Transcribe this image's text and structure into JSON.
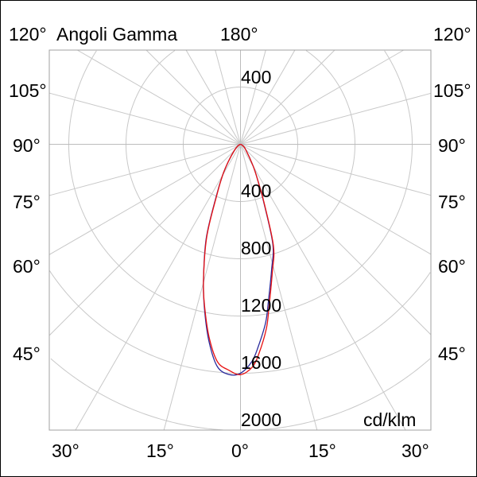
{
  "chart_data": {
    "type": "line",
    "subtype": "polar-photometric",
    "title": "Angoli Gamma",
    "unit_label": "cd/klm",
    "radial_ticks": [
      400,
      800,
      1200,
      1600,
      2000
    ],
    "radial_range": [
      0,
      2000
    ],
    "angle_step_deg": 15,
    "angle_labels": {
      "top_center": "180°",
      "left": [
        "120°",
        "105°",
        "90°",
        "75°",
        "60°",
        "45°"
      ],
      "right": [
        "120°",
        "105°",
        "90°",
        "75°",
        "60°",
        "45°"
      ],
      "bottom": [
        "30°",
        "15°",
        "0°",
        "15°",
        "30°"
      ]
    },
    "grid": true,
    "series": [
      {
        "color": "#2a2a9c",
        "gamma": [
          -90,
          -60,
          -45,
          -35,
          -30,
          -25,
          -20,
          -15,
          -12,
          -9,
          -6,
          -3,
          0,
          3,
          5,
          8,
          10,
          14,
          18,
          22,
          25,
          30,
          45,
          60,
          90
        ],
        "values": [
          0,
          20,
          60,
          150,
          250,
          400,
          700,
          1000,
          1200,
          1400,
          1560,
          1610,
          1600,
          1520,
          1420,
          1260,
          1120,
          900,
          730,
          430,
          300,
          180,
          50,
          15,
          0
        ]
      },
      {
        "color": "#e81010",
        "gamma": [
          -90,
          -60,
          -45,
          -35,
          -30,
          -25,
          -20,
          -15,
          -12,
          -9,
          -6,
          -3,
          0,
          3,
          5,
          8,
          10,
          14,
          18,
          22,
          25,
          30,
          45,
          60,
          90
        ],
        "values": [
          0,
          20,
          60,
          150,
          250,
          390,
          690,
          1000,
          1190,
          1380,
          1530,
          1580,
          1610,
          1560,
          1470,
          1300,
          1150,
          920,
          745,
          440,
          300,
          180,
          50,
          15,
          0
        ]
      }
    ]
  }
}
